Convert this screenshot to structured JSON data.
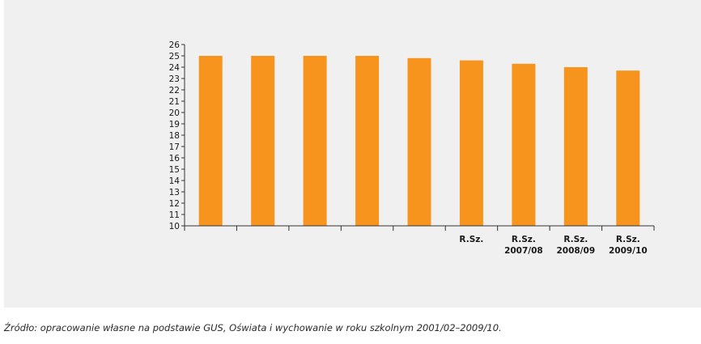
{
  "chart_data": {
    "type": "bar",
    "categories": [
      "",
      "",
      "",
      "",
      "",
      "R.Sz.",
      "R.Sz. 2007/08",
      "R.Sz. 2008/09",
      "R.Sz. 2009/10"
    ],
    "values": [
      25.0,
      25.0,
      25.0,
      25.0,
      24.8,
      24.6,
      24.3,
      24.0,
      23.7
    ],
    "ylim": [
      10,
      26
    ],
    "yticks": [
      10,
      11,
      12,
      13,
      14,
      15,
      16,
      17,
      18,
      19,
      20,
      21,
      22,
      23,
      24,
      25,
      26
    ],
    "grid": false,
    "bar_color": "#f7941d",
    "title": "",
    "xlabel": "",
    "ylabel": ""
  },
  "source_note": "Źródło: opracowanie własne na podstawie GUS, Oświata i wychowanie w roku szkolnym 2001/02–2009/10."
}
